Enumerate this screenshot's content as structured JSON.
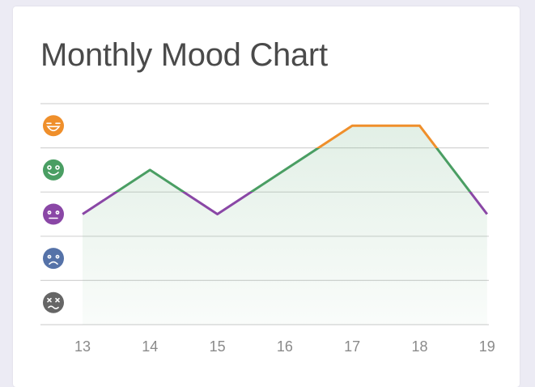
{
  "card": {
    "title": "Monthly Mood Chart"
  },
  "moods": [
    {
      "level": 5,
      "name": "laughing",
      "icon": "laughing-face-icon",
      "color": "#ef8f2b"
    },
    {
      "level": 4,
      "name": "happy",
      "icon": "happy-face-icon",
      "color": "#4a9e63"
    },
    {
      "level": 3,
      "name": "neutral",
      "icon": "neutral-face-icon",
      "color": "#8a47a6"
    },
    {
      "level": 2,
      "name": "sad",
      "icon": "sad-face-icon",
      "color": "#5572a8"
    },
    {
      "level": 1,
      "name": "dead",
      "icon": "dizzy-face-icon",
      "color": "#666666"
    }
  ],
  "chart_data": {
    "type": "line",
    "title": "Monthly Mood Chart",
    "xlabel": "",
    "ylabel": "",
    "x": [
      "13",
      "14",
      "15",
      "16",
      "17",
      "18",
      "19"
    ],
    "categories": [
      "13",
      "14",
      "15",
      "16",
      "17",
      "18",
      "19"
    ],
    "values": [
      3,
      4,
      3,
      4,
      5,
      5,
      3
    ],
    "ylim": [
      0,
      6
    ],
    "y_tick_labels": [
      "dizzy-face",
      "sad-face",
      "neutral-face",
      "happy-face",
      "laughing-face"
    ],
    "grid": true,
    "area_fill": true,
    "line_colors_by_band": {
      "5": "#ef8f2b",
      "4": "#4a9e63",
      "3": "#8a47a6"
    },
    "legend": "none"
  }
}
